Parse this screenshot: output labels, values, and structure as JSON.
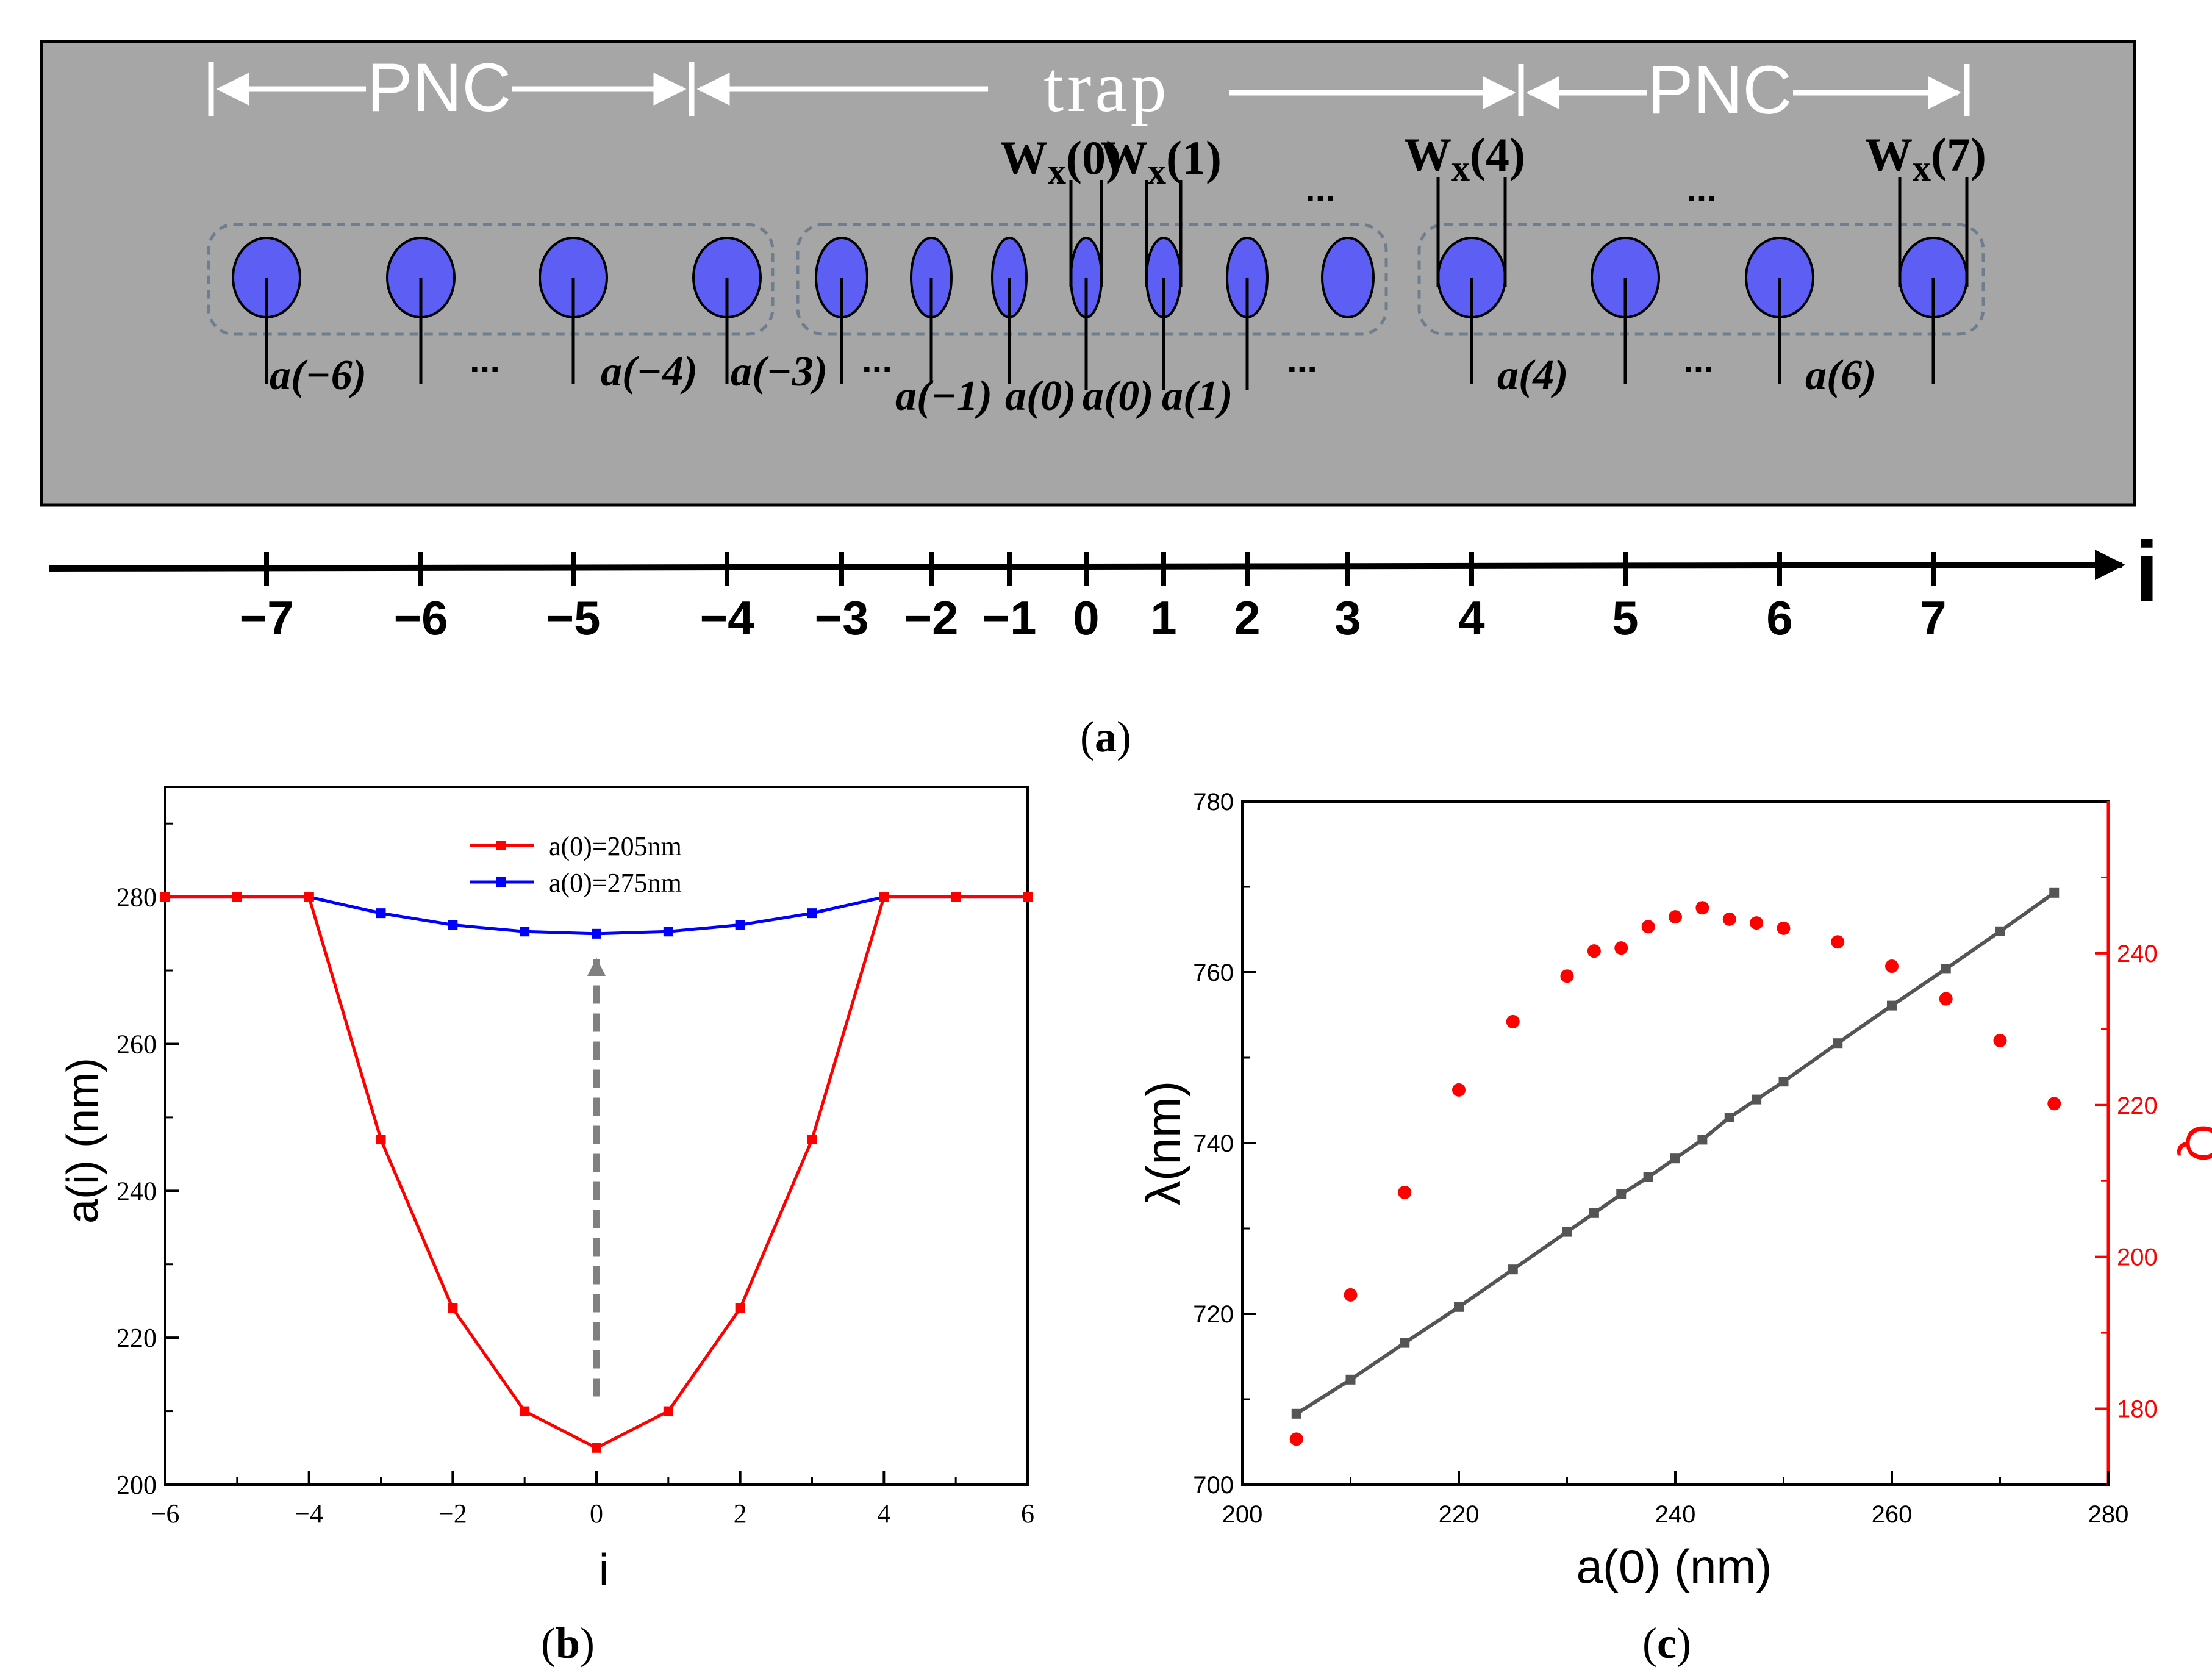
{
  "panel_a": {
    "caption": "(a)",
    "regions": {
      "left_pnc": "PNC",
      "trap": "trap",
      "right_pnc": "PNC"
    },
    "width_labels": [
      {
        "text": "W",
        "sub": "x",
        "arg": "(0)"
      },
      {
        "text": "W",
        "sub": "x",
        "arg": "(1)"
      },
      {
        "text": "W",
        "sub": "x",
        "arg": "(4)"
      },
      {
        "text": "W",
        "sub": "x",
        "arg": "(7)"
      }
    ],
    "period_labels": [
      "a(−6)",
      "a(−4)",
      "a(−3)",
      "a(−1)",
      "a(0)",
      "a(0)",
      "a(1)",
      "a(4)",
      "a(6)"
    ],
    "ellipsis": "...",
    "axis_label": "i",
    "axis_ticks": [
      "−7",
      "−6",
      "−5",
      "−4",
      "−3",
      "−2",
      "−1",
      "0",
      "1",
      "2",
      "3",
      "4",
      "5",
      "6",
      "7"
    ],
    "hole_color": "#5d5ef3",
    "background_color": "#a6a6a6"
  },
  "chart_data": [
    {
      "id": "b",
      "caption": "(b)",
      "type": "line",
      "xlabel": "i",
      "ylabel": "a(i) (nm)",
      "xlim": [
        -6,
        6
      ],
      "ylim": [
        200,
        295
      ],
      "xticks": [
        -6,
        -4,
        -2,
        0,
        2,
        4,
        6
      ],
      "yticks": [
        200,
        220,
        240,
        260,
        280
      ],
      "x": [
        -6,
        -5,
        -4,
        -3,
        -2,
        -1,
        0,
        1,
        2,
        3,
        4,
        5,
        6
      ],
      "series": [
        {
          "name": "a(0)=205nm",
          "color": "#ff0000",
          "values": [
            280,
            280,
            280,
            247,
            224,
            210,
            205,
            210,
            224,
            247,
            280,
            280,
            280
          ]
        },
        {
          "name": "a(0)=275nm",
          "color": "#0000ff",
          "values": [
            280,
            280,
            280,
            277.8,
            276.2,
            275.3,
            275,
            275.3,
            276.2,
            277.8,
            280,
            280,
            280
          ]
        }
      ],
      "legend_position": "top-center",
      "annotation": "dashed grey arrow from low to high a(0) at i=0"
    },
    {
      "id": "c",
      "caption": "(c)",
      "type": "scatter",
      "xlabel": "a(0) (nm)",
      "ylabel": "λ(nm)",
      "y2label": "Q",
      "xlim": [
        200,
        280
      ],
      "ylim": [
        700,
        780
      ],
      "y2lim": [
        170,
        260
      ],
      "xticks": [
        200,
        220,
        240,
        260,
        280
      ],
      "yticks": [
        700,
        720,
        740,
        760,
        780
      ],
      "y2ticks": [
        180,
        200,
        220,
        240
      ],
      "series": [
        {
          "name": "λ",
          "axis": "left",
          "color": "#555555",
          "x": [
            205,
            210,
            215,
            220,
            225,
            230,
            232.5,
            235,
            237.5,
            240,
            242.5,
            245,
            247.5,
            250,
            255,
            260,
            265,
            270,
            275
          ],
          "values": [
            708.3,
            712.3,
            716.6,
            720.8,
            725.2,
            729.6,
            731.8,
            734.0,
            736.0,
            738.2,
            740.4,
            743.0,
            745.1,
            747.2,
            751.7,
            756.1,
            760.4,
            764.8,
            769.3
          ]
        },
        {
          "name": "Q",
          "axis": "right",
          "color": "#ff0000",
          "x": [
            205,
            210,
            215,
            220,
            225,
            230,
            232.5,
            235,
            237.5,
            240,
            242.5,
            245,
            247.5,
            250,
            255,
            260,
            265,
            270,
            275
          ],
          "values": [
            176,
            195,
            208.5,
            222,
            231,
            237,
            240.3,
            240.7,
            243.5,
            244.8,
            246,
            244.5,
            244,
            243.3,
            241.5,
            238.3,
            234,
            228.5,
            220.2
          ]
        }
      ]
    }
  ]
}
